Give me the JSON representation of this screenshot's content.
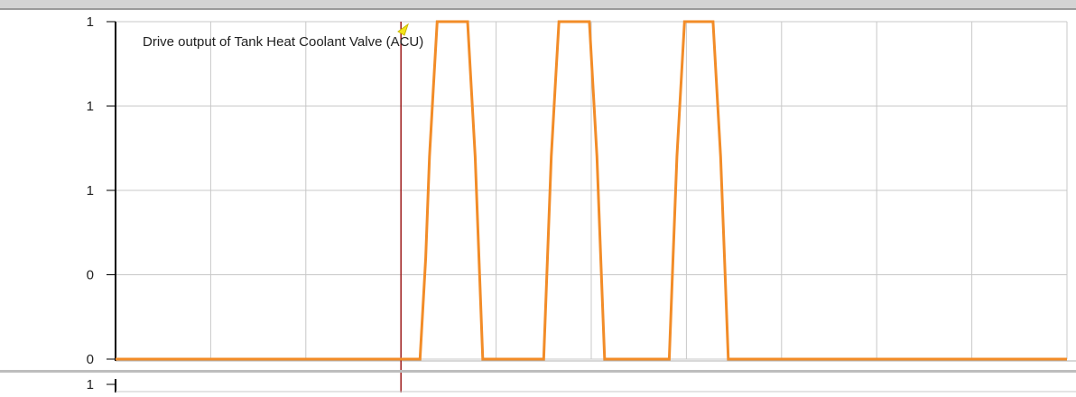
{
  "chart_data": {
    "type": "line",
    "title": "Drive output of Tank Heat Coolant Valve (ACU)",
    "xlabel": "",
    "ylabel": "",
    "y_tick_labels": [
      "1",
      "1",
      "1",
      "0",
      "0"
    ],
    "ylim": [
      0,
      1
    ],
    "xlim": [
      0,
      10
    ],
    "grid": true,
    "series": [
      {
        "color": "#f28c28",
        "x": [
          0,
          3.2,
          3.26,
          3.3,
          3.34,
          3.38,
          3.7,
          3.74,
          3.78,
          3.82,
          3.86,
          4.5,
          4.54,
          4.58,
          4.62,
          4.66,
          4.98,
          5.02,
          5.06,
          5.1,
          5.14,
          5.82,
          5.86,
          5.9,
          5.94,
          5.98,
          6.28,
          6.32,
          6.36,
          6.4,
          6.44,
          10
        ],
        "y": [
          0,
          0,
          0.3,
          0.6,
          0.8,
          1,
          1,
          0.8,
          0.6,
          0.3,
          0,
          0,
          0.3,
          0.6,
          0.8,
          1,
          1,
          0.8,
          0.6,
          0.3,
          0,
          0,
          0.3,
          0.6,
          0.8,
          1,
          1,
          0.8,
          0.6,
          0.3,
          0,
          0
        ]
      }
    ],
    "cursor_x": 3.0,
    "cursor_color": "#9e1b1b",
    "bottom_panel_tick_label": "1"
  }
}
